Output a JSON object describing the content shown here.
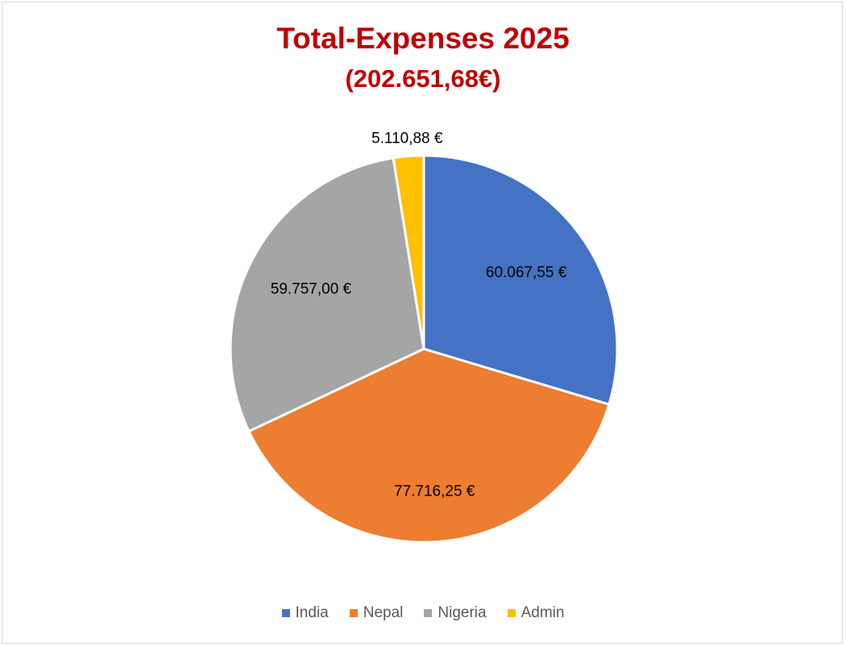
{
  "chart_data": {
    "type": "pie",
    "title": "Total-Expenses 2025",
    "subtitle": "(202.651,68€)",
    "categories": [
      "India",
      "Nepal",
      "Nigeria",
      "Admin"
    ],
    "values": [
      60067.55,
      77716.25,
      59757.0,
      5110.88
    ],
    "data_labels": [
      "60.067,55 €",
      "77.716,25 €",
      "59.757,00 €",
      "5.110,88 €"
    ],
    "colors": [
      "#4472c4",
      "#ed7d31",
      "#a5a5a5",
      "#ffc000"
    ],
    "title_color": "#c00000",
    "legend_position": "bottom"
  }
}
